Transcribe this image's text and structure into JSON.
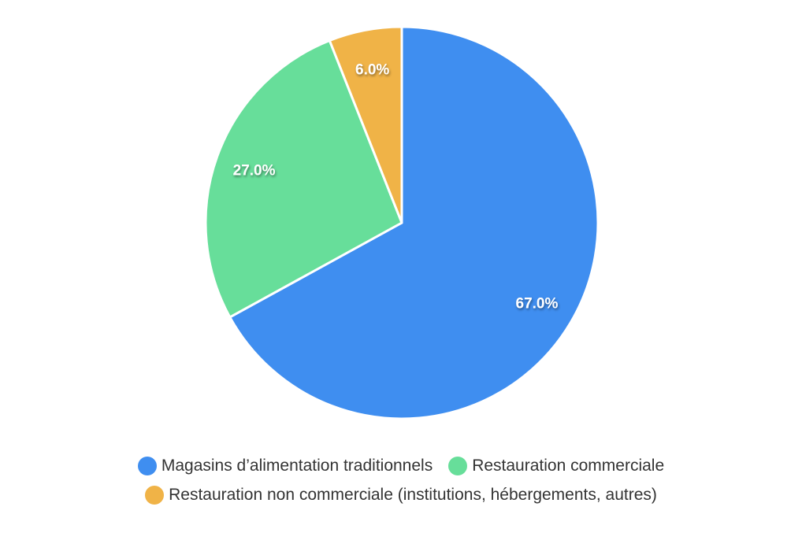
{
  "chart_data": {
    "type": "pie",
    "title": "",
    "categories": [
      "Magasins d’alimentation traditionnels",
      "Restauration commerciale",
      "Restauration non commerciale (institutions, hébergements, autres)"
    ],
    "values": [
      67.0,
      27.0,
      6.0
    ],
    "labels": [
      "67.0%",
      "27.0%",
      "6.0%"
    ],
    "colors": [
      "#3f8ef0",
      "#67de9a",
      "#f0b347"
    ],
    "legend_position": "bottom",
    "start_angle": "12 o'clock, clockwise"
  },
  "legend": {
    "items": [
      {
        "label": "Magasins d’alimentation traditionnels",
        "color": "#3f8ef0"
      },
      {
        "label": "Restauration commerciale",
        "color": "#67de9a"
      },
      {
        "label": "Restauration non commerciale (institutions, hébergements, autres)",
        "color": "#f0b347"
      }
    ]
  }
}
